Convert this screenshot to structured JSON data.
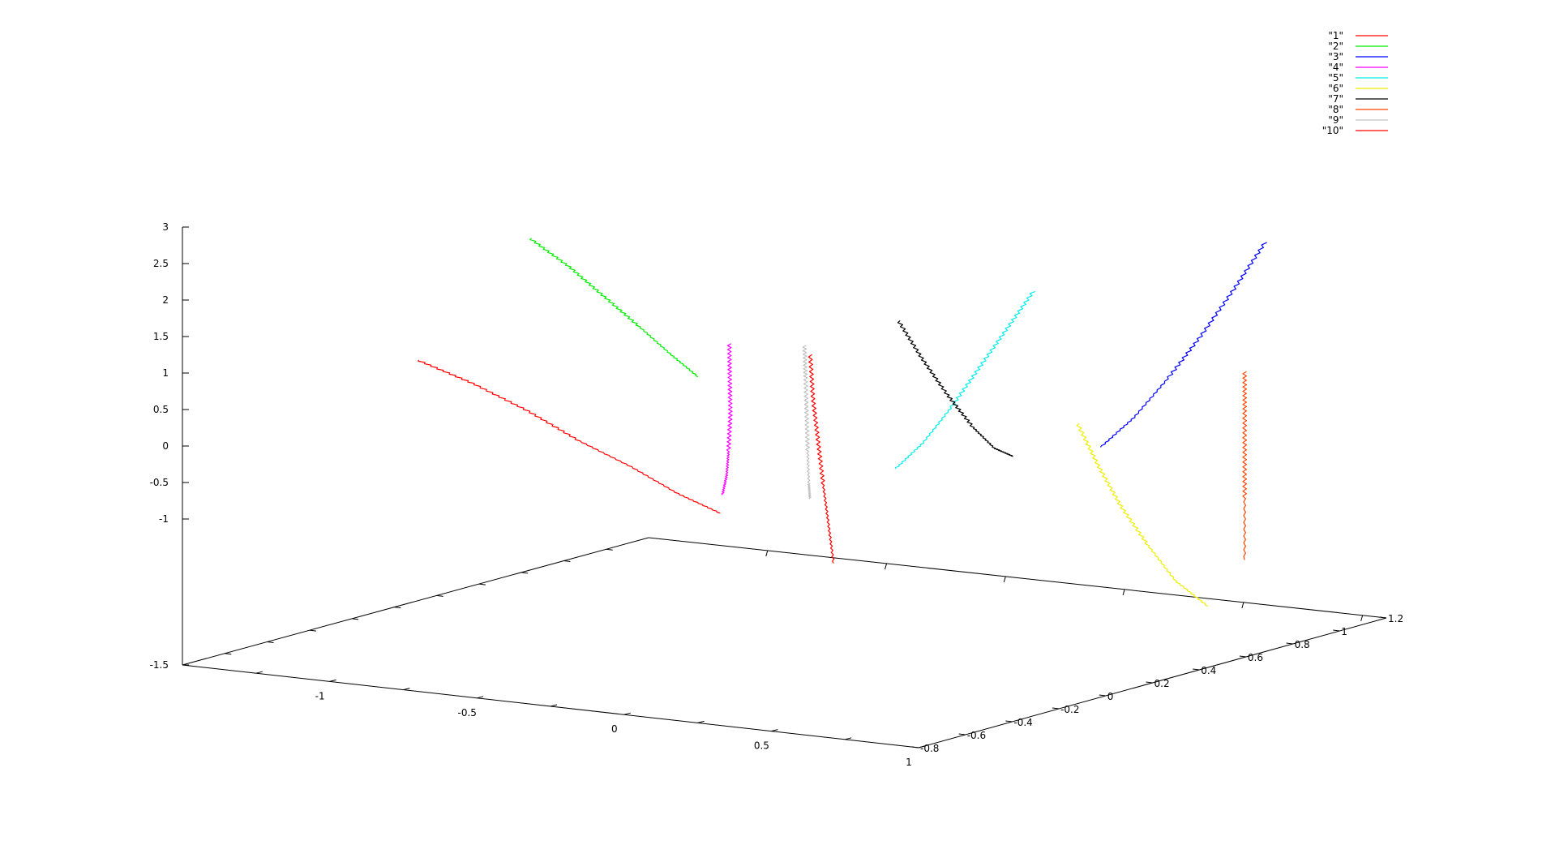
{
  "chart_data": {
    "type": "line",
    "projection": "3d",
    "z_axis": {
      "ticks": [
        "3",
        "2.5",
        "2",
        "1.5",
        "1",
        "0.5",
        "0",
        "-0.5",
        "-1",
        "-1.5"
      ]
    },
    "x_axis": {
      "ticks": [
        "-1",
        "-0.5",
        "0",
        "0.5",
        "1"
      ]
    },
    "y_axis": {
      "ticks": [
        "-0.8",
        "-0.6",
        "-0.4",
        "-0.2",
        "0",
        "0.2",
        "0.4",
        "0.6",
        "0.8",
        "1",
        "1.2"
      ]
    },
    "legend": {
      "position": "top-right",
      "entries": [
        {
          "label": "\"1\"",
          "color": "#ff0000"
        },
        {
          "label": "\"2\"",
          "color": "#00ee00"
        },
        {
          "label": "\"3\"",
          "color": "#0000ff"
        },
        {
          "label": "\"4\"",
          "color": "#ff00ff"
        },
        {
          "label": "\"5\"",
          "color": "#00eeee"
        },
        {
          "label": "\"6\"",
          "color": "#eeee00"
        },
        {
          "label": "\"7\"",
          "color": "#000000"
        },
        {
          "label": "\"8\"",
          "color": "#ff4500"
        },
        {
          "label": "\"9\"",
          "color": "#c0c0c0"
        },
        {
          "label": "\"10\"",
          "color": "#ff0000"
        }
      ]
    },
    "series": [
      {
        "legend_index": 0,
        "color": "#ff0000",
        "x": [
          -1.02,
          -0.95,
          -0.88,
          -0.8,
          -0.72,
          -0.64,
          -0.56
        ],
        "y": [
          0.8,
          0.65,
          0.5,
          0.38,
          0.26,
          0.16,
          0.08
        ],
        "z": [
          1.55,
          1.2,
          0.8,
          0.4,
          0.05,
          -0.3,
          -0.55
        ]
      },
      {
        "legend_index": 1,
        "color": "#00ee00",
        "x": [
          -0.78,
          -0.74,
          -0.7,
          -0.66,
          -0.62,
          -0.58
        ],
        "y": [
          0.62,
          0.5,
          0.4,
          0.3,
          0.22,
          0.15
        ],
        "z": [
          2.9,
          2.5,
          2.1,
          1.7,
          1.35,
          1.05
        ]
      },
      {
        "legend_index": 2,
        "color": "#0000ff",
        "x": [
          0.95,
          0.9,
          0.85,
          0.8,
          0.75,
          0.7
        ],
        "y": [
          -0.35,
          -0.28,
          -0.2,
          -0.12,
          -0.04,
          0.04
        ],
        "z": [
          2.8,
          2.3,
          1.8,
          1.35,
          0.95,
          0.65
        ]
      },
      {
        "legend_index": 3,
        "color": "#ff00ff",
        "x": [
          -0.45,
          -0.48,
          -0.51,
          -0.54,
          -0.57,
          -0.6
        ],
        "y": [
          0.18,
          0.14,
          0.1,
          0.07,
          0.04,
          0.02
        ],
        "z": [
          1.5,
          1.05,
          0.6,
          0.15,
          -0.15,
          -0.4
        ]
      },
      {
        "legend_index": 4,
        "color": "#00eeee",
        "x": [
          0.4,
          0.33,
          0.26,
          0.19,
          0.12,
          0.05
        ],
        "y": [
          -0.05,
          -0.02,
          0.01,
          0.04,
          0.07,
          0.1
        ],
        "z": [
          2.25,
          1.8,
          1.35,
          0.9,
          0.5,
          0.2
        ]
      },
      {
        "legend_index": 5,
        "color": "#eeee00",
        "x": [
          0.55,
          0.58,
          0.61,
          0.64,
          0.67,
          0.7
        ],
        "y": [
          -0.05,
          -0.1,
          -0.16,
          -0.24,
          -0.32,
          -0.42
        ],
        "z": [
          0.8,
          0.3,
          -0.2,
          -0.7,
          -1.15,
          -1.5
        ]
      },
      {
        "legend_index": 6,
        "color": "#000000",
        "x": [
          0.1,
          0.14,
          0.18,
          0.22,
          0.26,
          0.3
        ],
        "y": [
          0.15,
          0.1,
          0.04,
          -0.02,
          -0.06,
          -0.09
        ],
        "z": [
          1.95,
          1.5,
          1.05,
          0.65,
          0.4,
          0.3
        ]
      },
      {
        "legend_index": 7,
        "color": "#ff4500",
        "x": [
          0.92,
          0.92,
          0.92,
          0.92,
          0.92
        ],
        "y": [
          -0.3,
          -0.3,
          -0.3,
          -0.3,
          -0.3
        ],
        "z": [
          1.35,
          0.9,
          0.4,
          -0.1,
          -0.8
        ]
      },
      {
        "legend_index": 8,
        "color": "#c0c0c0",
        "x": [
          -0.1,
          -0.12,
          -0.14,
          -0.16,
          -0.18,
          -0.2
        ],
        "y": [
          0.3,
          0.27,
          0.24,
          0.21,
          0.18,
          0.15
        ],
        "z": [
          1.7,
          1.3,
          0.85,
          0.4,
          0.0,
          -0.2
        ]
      },
      {
        "legend_index": 9,
        "color": "#ff0000",
        "x": [
          -0.12,
          -0.15,
          -0.18,
          -0.21,
          -0.24,
          -0.27
        ],
        "y": [
          0.25,
          0.2,
          0.14,
          0.08,
          0.02,
          -0.04
        ],
        "z": [
          1.55,
          1.0,
          0.45,
          -0.1,
          -0.6,
          -1.1
        ]
      }
    ]
  }
}
